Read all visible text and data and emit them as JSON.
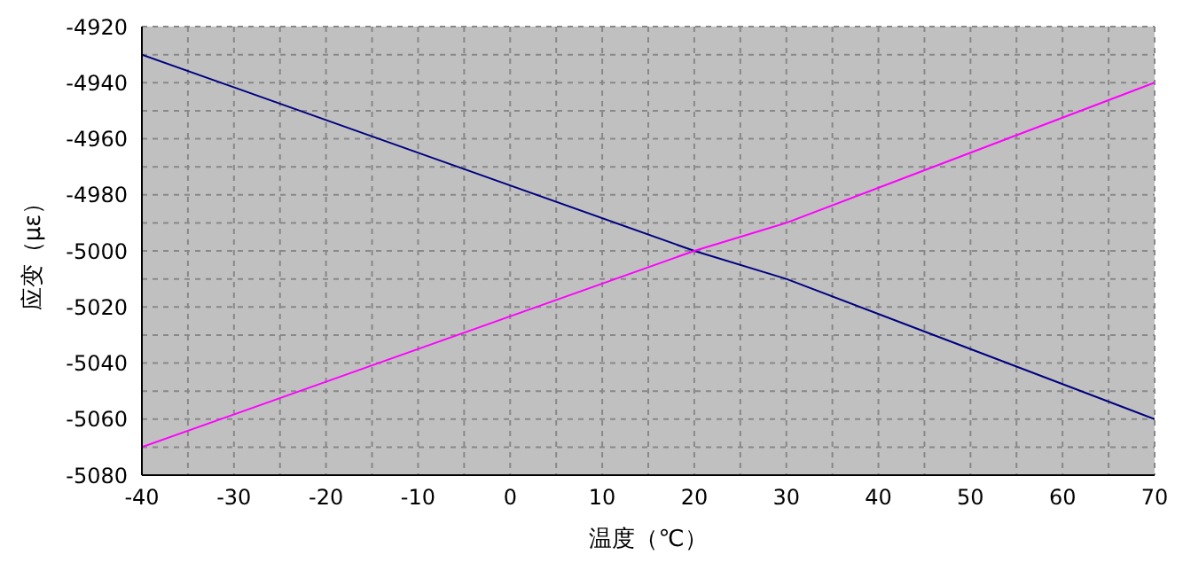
{
  "chart_data": {
    "type": "line",
    "xlabel": "温度（℃）",
    "ylabel": "应变（με）",
    "x": [
      -40,
      20,
      30,
      70
    ],
    "series": [
      {
        "color": "#000080",
        "values": [
          -4930,
          -5000,
          -5010,
          -5060
        ]
      },
      {
        "color": "#ff00ff",
        "values": [
          -5070,
          -5000,
          -4990,
          -4940
        ]
      }
    ],
    "xlim": [
      -40,
      70
    ],
    "xticks": [
      -40,
      {
        "value": -35,
        "label": null
      },
      -30,
      {
        "value": -25,
        "label": null
      },
      -20,
      {
        "value": -15,
        "label": null
      },
      -10,
      {
        "value": -5,
        "label": null
      },
      0,
      {
        "value": 5,
        "label": null
      },
      10,
      {
        "value": 15,
        "label": null
      },
      20,
      {
        "value": 25,
        "label": null
      },
      30,
      {
        "value": 35,
        "label": null
      },
      40,
      {
        "value": 45,
        "label": null
      },
      50,
      {
        "value": 55,
        "label": null
      },
      60,
      {
        "value": 65,
        "label": null
      },
      70
    ],
    "ylim": [
      -5080,
      -4920
    ],
    "yticks": [
      -5080,
      {
        "value": -5070,
        "label": null
      },
      -5060,
      {
        "value": -5050,
        "label": null
      },
      -5040,
      {
        "value": -5030,
        "label": null
      },
      -5020,
      {
        "value": -5010,
        "label": null
      },
      -5000,
      {
        "value": -4990,
        "label": null
      },
      -4980,
      {
        "value": -4970,
        "label": null
      },
      -4960,
      {
        "value": -4950,
        "label": null
      },
      -4940,
      {
        "value": -4930,
        "label": null
      },
      -4920
    ],
    "grid": true,
    "marker": "none",
    "line_style": "solid",
    "legend": false
  }
}
